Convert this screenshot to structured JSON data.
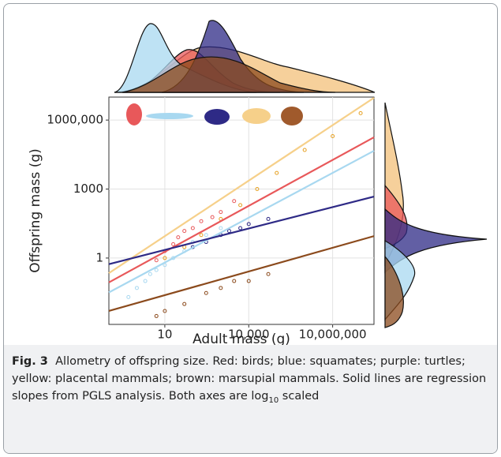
{
  "chart_data": {
    "type": "scatter",
    "x_label": "Adult mass (g)",
    "y_label": "Offspring mass (g)",
    "log_x": true,
    "log_y": true,
    "grid": true,
    "xlim": [
      0.1,
      300000000
    ],
    "ylim": [
      0.0013,
      10000000
    ],
    "xticks": [
      10,
      {
        "value": 10000,
        "label": "10,000"
      },
      {
        "value": 10000000,
        "label": "10,000,000"
      }
    ],
    "yticks": [
      1,
      1000,
      {
        "value": 1000000,
        "label": "1000,000"
      }
    ],
    "series": [
      {
        "color": "#a8d8f0",
        "x": [
          0.5,
          1,
          2,
          3,
          5,
          10,
          20,
          50,
          100,
          300,
          1000
        ],
        "values": [
          0.02,
          0.05,
          0.1,
          0.2,
          0.3,
          0.5,
          1,
          2,
          5,
          10,
          20
        ],
        "line": {
          "x": [
            0.1,
            300000000
          ],
          "values": [
            0.032,
            46000
          ]
        }
      },
      {
        "color": "#e8585a",
        "x": [
          5,
          10,
          20,
          30,
          50,
          100,
          200,
          500,
          1000,
          3000
        ],
        "values": [
          0.8,
          2,
          4,
          8,
          15,
          20,
          40,
          60,
          100,
          300
        ],
        "line": {
          "x": [
            0.1,
            300000000
          ],
          "values": [
            0.087,
            178000
          ]
        }
      },
      {
        "color": "#e6a020",
        "line_color": "#f6d08a",
        "x": [
          10,
          50,
          200,
          1000,
          5000,
          20000,
          100000,
          1000000,
          10000000,
          100000000
        ],
        "values": [
          1,
          3,
          10,
          50,
          200,
          1000,
          5000,
          50000,
          200000,
          2000000
        ],
        "line": {
          "x": [
            0.1,
            300000000
          ],
          "values": [
            0.22,
            9300000
          ]
        }
      },
      {
        "color": "#2e2a86",
        "x": [
          100,
          300,
          1000,
          2000,
          5000,
          10000,
          50000
        ],
        "values": [
          3,
          5,
          10,
          15,
          20,
          30,
          50
        ],
        "line": {
          "x": [
            0.1,
            300000000
          ],
          "values": [
            0.54,
            470
          ]
        }
      },
      {
        "color": "#8b4a1c",
        "x": [
          5,
          10,
          50,
          300,
          1000,
          3000,
          10000,
          50000
        ],
        "values": [
          0.003,
          0.005,
          0.01,
          0.03,
          0.05,
          0.1,
          0.1,
          0.2
        ],
        "line": {
          "x": [
            0.1,
            300000000
          ],
          "values": [
            0.005,
            9
          ]
        }
      }
    ]
  },
  "caption": {
    "label": "Fig. 3",
    "text": "Allometry of offspring size. Red: birds; blue: squamates; purple: turtles; yellow: placental mammals; brown: marsupial mammals. Solid lines are regression slopes from PGLS analysis. Both axes are log",
    "sub": "10",
    "tail": " scaled"
  }
}
